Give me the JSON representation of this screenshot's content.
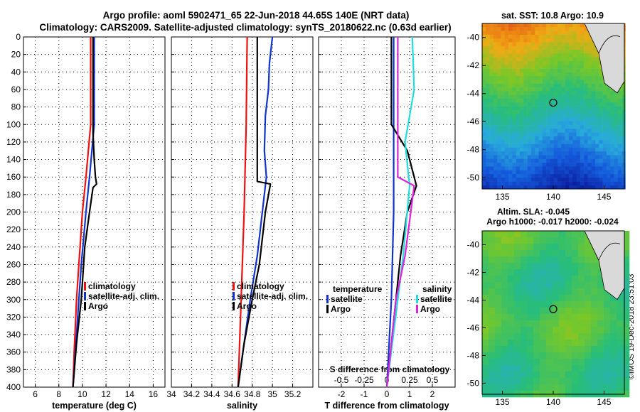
{
  "title_line1": "Argo profile: aoml 5902471_65 22-Jun-2018 44.65S 140E (NRT data)",
  "title_line2": "Climatology: CARS2009. Satellite-adjusted climatology: synTS_20180622.nc (0.63d earlier)",
  "sst_title": "sat. SST: 10.8 Argo: 10.9",
  "altim_title1": "Altim. SLA: -0.045",
  "altim_title2": "Argo h1000: -0.017 h2000: -0.024",
  "watermark": "©IMOS 19-Dec-2018 23:51:03",
  "colors": {
    "climatology": "#ee1111",
    "satellite": "#1133cc",
    "argo": "#000000",
    "sat_salinity": "#22dddd",
    "argo_salinity": "#dd22dd"
  },
  "chart_data": [
    {
      "type": "line",
      "name": "temperature",
      "xlabel": "temperature (deg C)",
      "xlim": [
        5,
        17
      ],
      "xticks": [
        "6",
        "8",
        "10",
        "12",
        "14",
        "16"
      ],
      "ylim": [
        0,
        400
      ],
      "yticks": [
        "0",
        "20",
        "40",
        "60",
        "80",
        "100",
        "120",
        "140",
        "160",
        "180",
        "200",
        "220",
        "240",
        "260",
        "280",
        "300",
        "320",
        "340",
        "360",
        "380",
        "400"
      ],
      "legend": [
        "climatology",
        "satellite-adj. clim.",
        "Argo"
      ],
      "series": [
        {
          "name": "climatology",
          "depth": [
            0,
            100,
            160,
            200,
            260,
            300,
            360,
            400
          ],
          "values": [
            10.7,
            10.7,
            10.3,
            10.0,
            9.7,
            9.5,
            9.3,
            9.2
          ]
        },
        {
          "name": "satellite-adj. clim.",
          "depth": [
            0,
            100,
            160,
            200,
            260,
            300,
            360,
            400
          ],
          "values": [
            11.0,
            11.0,
            10.6,
            10.3,
            9.9,
            9.7,
            9.4,
            9.2
          ]
        },
        {
          "name": "Argo",
          "depth": [
            0,
            110,
            140,
            160,
            168,
            172,
            200,
            240,
            300,
            350,
            400
          ],
          "values": [
            10.9,
            10.9,
            11.0,
            11.1,
            11.2,
            10.9,
            10.6,
            10.2,
            9.9,
            9.5,
            9.2
          ]
        }
      ]
    },
    {
      "type": "line",
      "name": "salinity",
      "xlabel": "salinity",
      "xlim": [
        34,
        35.4
      ],
      "xticks": [
        "34",
        "34.2",
        "34.4",
        "34.6",
        "34.8",
        "35",
        "35.2"
      ],
      "ylim": [
        0,
        400
      ],
      "legend": [
        "climatology",
        "satellite-adj. clim.",
        "Argo"
      ],
      "series": [
        {
          "name": "climatology",
          "depth": [
            0,
            100,
            200,
            300,
            400
          ],
          "values": [
            34.75,
            34.74,
            34.72,
            34.69,
            34.66
          ]
        },
        {
          "name": "satellite-adj. clim.",
          "depth": [
            0,
            30,
            60,
            90,
            130,
            160,
            200,
            250,
            300,
            350,
            400
          ],
          "values": [
            35.0,
            34.97,
            34.96,
            34.93,
            34.92,
            34.94,
            34.9,
            34.85,
            34.78,
            34.72,
            34.66
          ]
        },
        {
          "name": "Argo",
          "depth": [
            0,
            165,
            168,
            200,
            260,
            300,
            350,
            400
          ],
          "values": [
            34.85,
            34.85,
            34.98,
            34.93,
            34.87,
            34.8,
            34.72,
            34.66
          ]
        }
      ]
    },
    {
      "type": "line",
      "name": "difference",
      "xlabel": "T difference from climatology",
      "xlabel_top": "S difference from climatology",
      "xlim": [
        -3,
        3
      ],
      "xticks": [
        "-2",
        "-1",
        "0",
        "1",
        "2"
      ],
      "xticks_top": [
        "-0.5",
        "-0.25",
        "0",
        "0.25",
        "0.5"
      ],
      "ylim": [
        0,
        400
      ],
      "legend_left_title": "temperature",
      "legend_left": [
        "satellite",
        "Argo"
      ],
      "legend_right_title": "salinity",
      "legend_right": [
        "satellite",
        "Argo"
      ],
      "series": [
        {
          "name": "temperature satellite",
          "depth": [
            0,
            100,
            200,
            300,
            400
          ],
          "values": [
            0.3,
            0.3,
            0.3,
            0.2,
            0.0
          ]
        },
        {
          "name": "temperature Argo",
          "depth": [
            0,
            100,
            130,
            160,
            170,
            200,
            250,
            300,
            400
          ],
          "values": [
            0.2,
            0.2,
            0.9,
            1.2,
            1.3,
            0.9,
            0.6,
            0.4,
            0.0
          ]
        },
        {
          "name": "salinity satellite",
          "depth": [
            0,
            60,
            120,
            170,
            250,
            300,
            400
          ],
          "values": [
            0.28,
            0.3,
            0.2,
            0.25,
            0.18,
            0.12,
            0.0
          ]
        },
        {
          "name": "salinity Argo",
          "depth": [
            0,
            160,
            170,
            250,
            300,
            400
          ],
          "values": [
            0.12,
            0.12,
            0.3,
            0.2,
            0.1,
            0.0
          ]
        }
      ]
    },
    {
      "type": "heatmap",
      "name": "sat-sst-map",
      "title": "sat. SST: 10.8 Argo: 10.9",
      "xticks": [
        "135",
        "140",
        "145"
      ],
      "yticks": [
        "-40",
        "-42",
        "-44",
        "-46",
        "-48",
        "-50"
      ]
    },
    {
      "type": "heatmap",
      "name": "altimetry-map",
      "title": "Altim. SLA: -0.045",
      "xticks": [
        "135",
        "140",
        "145"
      ],
      "yticks": [
        "-40",
        "-42",
        "-44",
        "-46",
        "-48",
        "-50"
      ]
    }
  ]
}
